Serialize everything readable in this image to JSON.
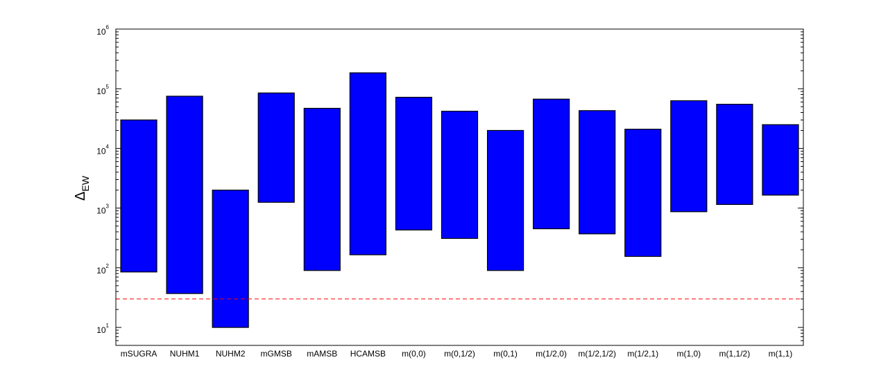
{
  "chart_data": {
    "type": "floating-bar",
    "scale": "log",
    "ylabel_symbol": "Δ",
    "ylabel_subscript": "EW",
    "ylim": [
      5,
      1000000
    ],
    "yticks": [
      {
        "value": 10,
        "base": "10",
        "exp": "1"
      },
      {
        "value": 100,
        "base": "10",
        "exp": "2"
      },
      {
        "value": 1000,
        "base": "10",
        "exp": "3"
      },
      {
        "value": 10000,
        "base": "10",
        "exp": "4"
      },
      {
        "value": 100000,
        "base": "10",
        "exp": "5"
      },
      {
        "value": 1000000,
        "base": "10",
        "exp": "6"
      }
    ],
    "reference_line": {
      "value": 30,
      "color": "#ff0000",
      "style": "dashed"
    },
    "bar_color": "#0000ff",
    "categories": [
      "mSUGRA",
      "NUHM1",
      "NUHM2",
      "mGMSB",
      "mAMSB",
      "HCAMSB",
      "m(0,0)",
      "m(0,1/2)",
      "m(0,1)",
      "m(1/2,0)",
      "m(1/2,1/2)",
      "m(1/2,1)",
      "m(1,0)",
      "m(1,1/2)",
      "m(1,1)"
    ],
    "ranges": [
      [
        85,
        30000
      ],
      [
        37,
        75000
      ],
      [
        10,
        2000
      ],
      [
        1250,
        85000
      ],
      [
        90,
        47000
      ],
      [
        165,
        185000
      ],
      [
        430,
        72000
      ],
      [
        310,
        42000
      ],
      [
        90,
        20000
      ],
      [
        450,
        67000
      ],
      [
        370,
        43000
      ],
      [
        155,
        21000
      ],
      [
        870,
        63000
      ],
      [
        1150,
        55000
      ],
      [
        1650,
        25000
      ]
    ]
  }
}
